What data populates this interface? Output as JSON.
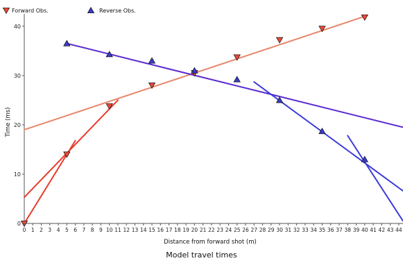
{
  "caption": "Model travel times",
  "chart_data": {
    "type": "scatter",
    "xlabel": "Distance from forward shot (m)",
    "ylabel": "Time (ms)",
    "xlim": [
      0,
      44.5
    ],
    "ylim": [
      0,
      42.5
    ],
    "xticks": [
      0,
      1,
      2,
      3,
      4,
      5,
      6,
      7,
      8,
      9,
      10,
      11,
      12,
      13,
      14,
      15,
      16,
      17,
      18,
      19,
      20,
      21,
      22,
      23,
      24,
      25,
      26,
      27,
      28,
      29,
      30,
      31,
      32,
      33,
      34,
      35,
      36,
      37,
      38,
      39,
      40,
      41,
      42,
      43,
      44
    ],
    "yticks": [
      0,
      10,
      20,
      30,
      40
    ],
    "legend_position": "top-left",
    "series": [
      {
        "name": "Forward Obs.",
        "marker": "triangle-down",
        "color": "#e84a3a",
        "points": [
          [
            0,
            0
          ],
          [
            5,
            14
          ],
          [
            10,
            23.8
          ],
          [
            15,
            28
          ],
          [
            20,
            30.5
          ],
          [
            25,
            33.7
          ],
          [
            30,
            37.2
          ],
          [
            35,
            39.5
          ],
          [
            40,
            41.8
          ]
        ]
      },
      {
        "name": "Reverse Obs.",
        "marker": "triangle-up",
        "color": "#3a3ac8",
        "points": [
          [
            5,
            36.5
          ],
          [
            10,
            34.3
          ],
          [
            15,
            33
          ],
          [
            20,
            31
          ],
          [
            25,
            29.2
          ],
          [
            30,
            25
          ],
          [
            35,
            18.7
          ],
          [
            40,
            13
          ]
        ]
      }
    ],
    "fit_lines": [
      {
        "color": "#e83a2a",
        "points": [
          [
            0,
            0
          ],
          [
            6,
            16.8
          ]
        ]
      },
      {
        "color": "#e83a2a",
        "points": [
          [
            0,
            5.3
          ],
          [
            11,
            25
          ]
        ]
      },
      {
        "color": "#e8866a",
        "points": [
          [
            0,
            19
          ],
          [
            40,
            42
          ]
        ]
      },
      {
        "color": "#5a2ad0",
        "points": [
          [
            5,
            36.5
          ],
          [
            44.5,
            19.5
          ]
        ]
      },
      {
        "color": "#3a3ad8",
        "points": [
          [
            27,
            28.7
          ],
          [
            44.5,
            6.6
          ]
        ]
      },
      {
        "color": "#3a3ad8",
        "points": [
          [
            38,
            17.8
          ],
          [
            44.5,
            0.5
          ]
        ]
      }
    ]
  }
}
